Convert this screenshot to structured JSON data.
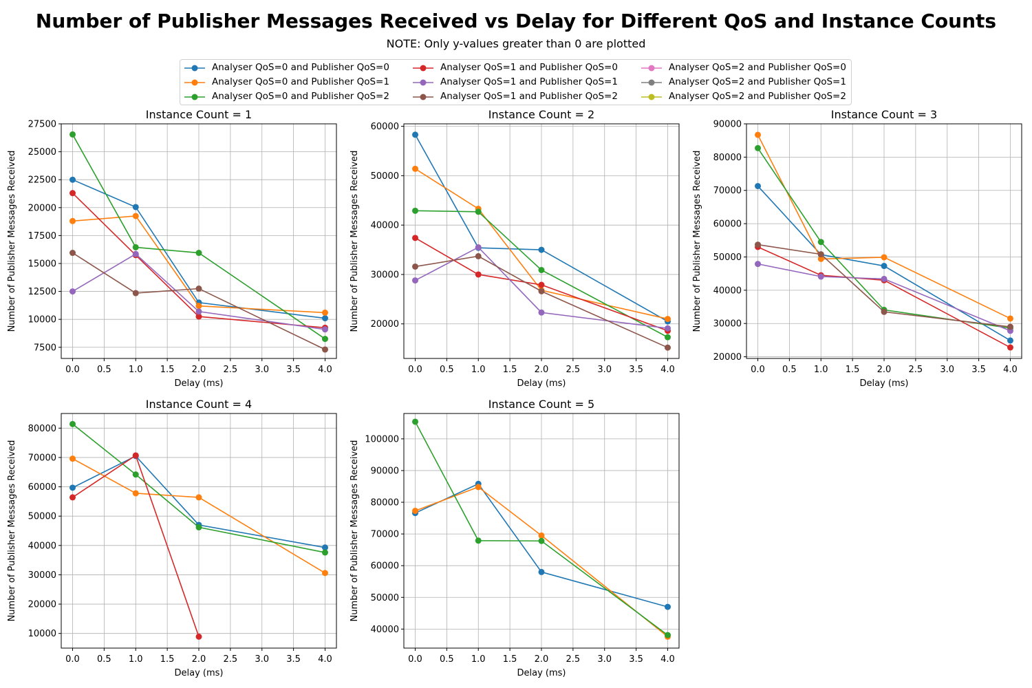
{
  "title": "Number of Publisher Messages Received vs Delay for Different QoS and Instance Counts",
  "subtitle": "NOTE: Only y-values greater than 0 are plotted",
  "legend": [
    {
      "label": "Analyser QoS=0 and Publisher QoS=0",
      "color": "#1f77b4"
    },
    {
      "label": "Analyser QoS=0 and Publisher QoS=1",
      "color": "#ff7f0e"
    },
    {
      "label": "Analyser QoS=0 and Publisher QoS=2",
      "color": "#2ca02c"
    },
    {
      "label": "Analyser QoS=1 and Publisher QoS=0",
      "color": "#d62728"
    },
    {
      "label": "Analyser QoS=1 and Publisher QoS=1",
      "color": "#9467bd"
    },
    {
      "label": "Analyser QoS=1 and Publisher QoS=2",
      "color": "#8c564b"
    },
    {
      "label": "Analyser QoS=2 and Publisher QoS=0",
      "color": "#e377c2"
    },
    {
      "label": "Analyser QoS=2 and Publisher QoS=1",
      "color": "#7f7f7f"
    },
    {
      "label": "Analyser QoS=2 and Publisher QoS=2",
      "color": "#bcbd22"
    }
  ],
  "chart_data": [
    {
      "type": "line",
      "title": "Instance Count = 1",
      "xlabel": "Delay (ms)",
      "ylabel": "Number of Publisher Messages Received",
      "x": [
        0,
        1,
        2,
        4
      ],
      "xticks": [
        "0.0",
        "0.5",
        "1.0",
        "1.5",
        "2.0",
        "2.5",
        "3.0",
        "3.5",
        "4.0"
      ],
      "xlim": [
        -0.18,
        4.18
      ],
      "yticks": [
        7500,
        10000,
        12500,
        15000,
        17500,
        20000,
        22500,
        25000,
        27500
      ],
      "ylim": [
        6500,
        27500
      ],
      "grid": true,
      "series": [
        {
          "name": "Analyser QoS=0 and Publisher QoS=0",
          "color": "#1f77b4",
          "values": [
            22500,
            20050,
            11500,
            10100
          ]
        },
        {
          "name": "Analyser QoS=0 and Publisher QoS=1",
          "color": "#ff7f0e",
          "values": [
            18800,
            19250,
            11200,
            10600
          ]
        },
        {
          "name": "Analyser QoS=0 and Publisher QoS=2",
          "color": "#2ca02c",
          "values": [
            26550,
            16450,
            15950,
            8250
          ]
        },
        {
          "name": "Analyser QoS=1 and Publisher QoS=0",
          "color": "#d62728",
          "values": [
            21300,
            15750,
            10250,
            9250
          ]
        },
        {
          "name": "Analyser QoS=1 and Publisher QoS=1",
          "color": "#9467bd",
          "values": [
            12500,
            15850,
            10700,
            9100
          ]
        },
        {
          "name": "Analyser QoS=1 and Publisher QoS=2",
          "color": "#8c564b",
          "values": [
            15950,
            12350,
            12750,
            7300
          ]
        }
      ]
    },
    {
      "type": "line",
      "title": "Instance Count = 2",
      "xlabel": "Delay (ms)",
      "ylabel": "Number of Publisher Messages Received",
      "x": [
        0,
        1,
        2,
        4
      ],
      "xticks": [
        "0.0",
        "0.5",
        "1.0",
        "1.5",
        "2.0",
        "2.5",
        "3.0",
        "3.5",
        "4.0"
      ],
      "xlim": [
        -0.18,
        4.18
      ],
      "yticks": [
        20000,
        30000,
        40000,
        50000,
        60000
      ],
      "ylim": [
        13000,
        60500
      ],
      "grid": true,
      "series": [
        {
          "name": "Analyser QoS=0 and Publisher QoS=0",
          "color": "#1f77b4",
          "values": [
            58300,
            35400,
            35000,
            20500
          ]
        },
        {
          "name": "Analyser QoS=0 and Publisher QoS=1",
          "color": "#ff7f0e",
          "values": [
            51400,
            43300,
            26800,
            21000
          ]
        },
        {
          "name": "Analyser QoS=0 and Publisher QoS=2",
          "color": "#2ca02c",
          "values": [
            42900,
            42700,
            30900,
            17300
          ]
        },
        {
          "name": "Analyser QoS=1 and Publisher QoS=0",
          "color": "#d62728",
          "values": [
            37400,
            30000,
            27900,
            18600
          ]
        },
        {
          "name": "Analyser QoS=1 and Publisher QoS=1",
          "color": "#9467bd",
          "values": [
            28800,
            35500,
            22300,
            19100
          ]
        },
        {
          "name": "Analyser QoS=1 and Publisher QoS=2",
          "color": "#8c564b",
          "values": [
            31600,
            33700,
            26600,
            15200
          ]
        }
      ]
    },
    {
      "type": "line",
      "title": "Instance Count = 3",
      "xlabel": "Delay (ms)",
      "ylabel": "Number of Publisher Messages Received",
      "x": [
        0,
        1,
        2,
        4
      ],
      "xticks": [
        "0.0",
        "0.5",
        "1.0",
        "1.5",
        "2.0",
        "2.5",
        "3.0",
        "3.5",
        "4.0"
      ],
      "xlim": [
        -0.18,
        4.18
      ],
      "yticks": [
        20000,
        30000,
        40000,
        50000,
        60000,
        70000,
        80000,
        90000
      ],
      "ylim": [
        19500,
        90000
      ],
      "grid": true,
      "series": [
        {
          "name": "Analyser QoS=0 and Publisher QoS=0",
          "color": "#1f77b4",
          "values": [
            71300,
            50700,
            47300,
            24900
          ]
        },
        {
          "name": "Analyser QoS=0 and Publisher QoS=1",
          "color": "#ff7f0e",
          "values": [
            86700,
            49400,
            49900,
            31500
          ]
        },
        {
          "name": "Analyser QoS=0 and Publisher QoS=2",
          "color": "#2ca02c",
          "values": [
            82700,
            54500,
            34100,
            28600
          ]
        },
        {
          "name": "Analyser QoS=1 and Publisher QoS=0",
          "color": "#d62728",
          "values": [
            53000,
            44500,
            43000,
            22800
          ]
        },
        {
          "name": "Analyser QoS=1 and Publisher QoS=1",
          "color": "#9467bd",
          "values": [
            47900,
            44100,
            43400,
            27800
          ]
        },
        {
          "name": "Analyser QoS=1 and Publisher QoS=2",
          "color": "#8c564b",
          "values": [
            53700,
            50800,
            33500,
            29000
          ]
        }
      ]
    },
    {
      "type": "line",
      "title": "Instance Count = 4",
      "xlabel": "Delay (ms)",
      "ylabel": "Number of Publisher Messages Received",
      "x": [
        0,
        1,
        2,
        4
      ],
      "xticks": [
        "0.0",
        "0.5",
        "1.0",
        "1.5",
        "2.0",
        "2.5",
        "3.0",
        "3.5",
        "4.0"
      ],
      "xlim": [
        -0.18,
        4.18
      ],
      "yticks": [
        10000,
        20000,
        30000,
        40000,
        50000,
        60000,
        70000,
        80000
      ],
      "ylim": [
        5000,
        85000
      ],
      "grid": true,
      "series": [
        {
          "name": "Analyser QoS=0 and Publisher QoS=0",
          "color": "#1f77b4",
          "values": [
            59700,
            70500,
            47000,
            39300
          ]
        },
        {
          "name": "Analyser QoS=0 and Publisher QoS=1",
          "color": "#ff7f0e",
          "values": [
            69600,
            57800,
            56400,
            30600
          ]
        },
        {
          "name": "Analyser QoS=0 and Publisher QoS=2",
          "color": "#2ca02c",
          "values": [
            81400,
            64200,
            46200,
            37600
          ]
        },
        {
          "name": "Analyser QoS=1 and Publisher QoS=0",
          "color": "#d62728",
          "values": [
            56400,
            70700,
            8900,
            null
          ]
        }
      ]
    },
    {
      "type": "line",
      "title": "Instance Count = 5",
      "xlabel": "Delay (ms)",
      "ylabel": "Number of Publisher Messages Received",
      "x": [
        0,
        1,
        2,
        4
      ],
      "xticks": [
        "0.0",
        "0.5",
        "1.0",
        "1.5",
        "2.0",
        "2.5",
        "3.0",
        "3.5",
        "4.0"
      ],
      "xlim": [
        -0.18,
        4.18
      ],
      "yticks": [
        40000,
        50000,
        60000,
        70000,
        80000,
        90000,
        100000
      ],
      "ylim": [
        34000,
        108000
      ],
      "grid": true,
      "series": [
        {
          "name": "Analyser QoS=0 and Publisher QoS=0",
          "color": "#1f77b4",
          "values": [
            76600,
            85800,
            58000,
            47000
          ]
        },
        {
          "name": "Analyser QoS=0 and Publisher QoS=1",
          "color": "#ff7f0e",
          "values": [
            77300,
            84800,
            69500,
            37600
          ]
        },
        {
          "name": "Analyser QoS=0 and Publisher QoS=2",
          "color": "#2ca02c",
          "values": [
            105400,
            67900,
            67800,
            38100
          ]
        }
      ]
    }
  ]
}
